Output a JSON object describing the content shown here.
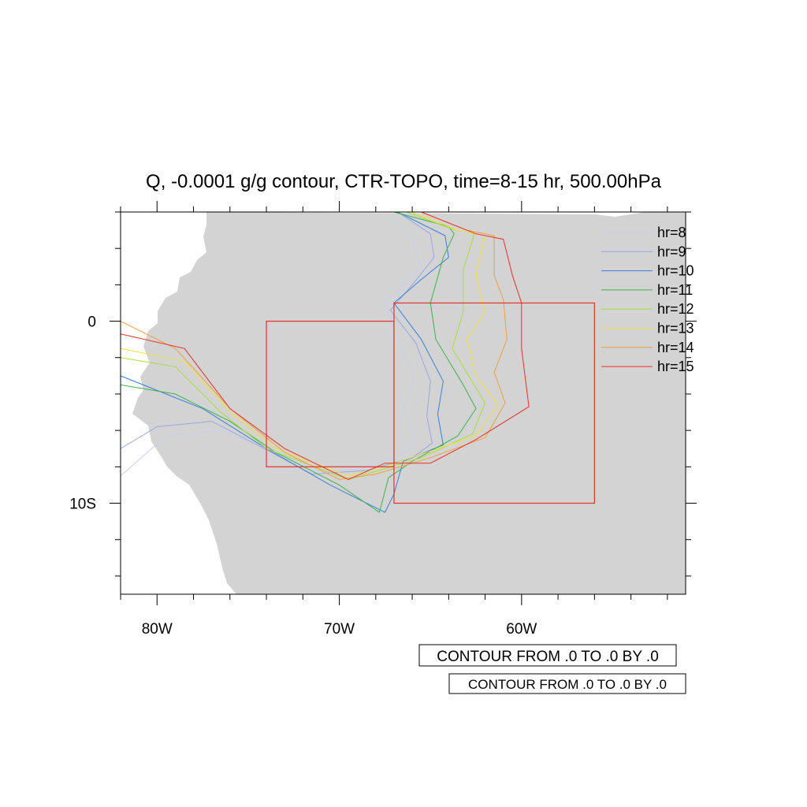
{
  "title": "Q, -0.0001 g/g contour, CTR-TOPO, time=8-15 hr, 500.00hPa",
  "map": {
    "lon_range": [
      -82,
      -51
    ],
    "lat_range": [
      -15,
      6
    ],
    "x_tick_labels": [
      {
        "lon": -80,
        "label": "80W"
      },
      {
        "lon": -70,
        "label": "70W"
      },
      {
        "lon": -60,
        "label": "60W"
      }
    ],
    "y_tick_labels": [
      {
        "lat": 0,
        "label": "0"
      },
      {
        "lat": -10,
        "label": "10S"
      }
    ],
    "land_color": "#d3d3d3",
    "ocean_color": "#ffffff"
  },
  "legend": {
    "placement": "top-right",
    "entries": [
      {
        "label": "hr=8",
        "color": "#c8cff0"
      },
      {
        "label": "hr=9",
        "color": "#97a8e6"
      },
      {
        "label": "hr=10",
        "color": "#3a7ee0"
      },
      {
        "label": "hr=11",
        "color": "#3cb44b"
      },
      {
        "label": "hr=12",
        "color": "#a8df3a"
      },
      {
        "label": "hr=13",
        "color": "#f0e23a"
      },
      {
        "label": "hr=14",
        "color": "#f0a13a"
      },
      {
        "label": "hr=15",
        "color": "#e8302a"
      }
    ]
  },
  "boxes": [
    {
      "name": "west-box",
      "lon": [
        -74,
        -67
      ],
      "lat": [
        -8,
        0
      ],
      "color": "#e8302a"
    },
    {
      "name": "east-box",
      "lon": [
        -67,
        -56
      ],
      "lat": [
        -10,
        1
      ],
      "color": "#e8302a"
    }
  ],
  "info_labels": [
    "CONTOUR FROM .0 TO .0 BY .0",
    "CONTOUR FROM .0 TO .0 BY .0"
  ],
  "chart_data": {
    "type": "contour-map",
    "title": "Q, -0.0001 g/g contour, CTR-TOPO, time=8-15 hr, 500.00hPa",
    "series": [
      {
        "name": "hr=8",
        "contour": [
          [
            -67.3,
            5.8
          ],
          [
            -66.0,
            4.5
          ],
          [
            -65.5,
            3.0
          ],
          [
            -66.5,
            2.0
          ],
          [
            -67.5,
            1.0
          ],
          [
            -66.8,
            -1.0
          ],
          [
            -65.9,
            -3.0
          ],
          [
            -66.5,
            -5.0
          ],
          [
            -65.8,
            -6.5
          ],
          [
            -66.5,
            -7.3
          ],
          [
            -68.8,
            -8.1
          ],
          [
            -71.0,
            -8.3
          ],
          [
            -74.0,
            -7.0
          ],
          [
            -76.5,
            -6.0
          ],
          [
            -79.5,
            -6.3
          ],
          [
            -82.0,
            -8.5
          ]
        ]
      },
      {
        "name": "hr=9",
        "contour": [
          [
            -66.8,
            6.0
          ],
          [
            -65.0,
            4.8
          ],
          [
            -64.8,
            3.5
          ],
          [
            -66.0,
            2.0
          ],
          [
            -67.2,
            0.6
          ],
          [
            -65.8,
            -1.2
          ],
          [
            -65.0,
            -3.3
          ],
          [
            -65.2,
            -5.2
          ],
          [
            -64.9,
            -6.7
          ],
          [
            -66.0,
            -7.5
          ],
          [
            -68.5,
            -8.2
          ],
          [
            -71.5,
            -8.4
          ],
          [
            -74.5,
            -6.8
          ],
          [
            -77.0,
            -5.5
          ],
          [
            -80.0,
            -5.8
          ],
          [
            -82.0,
            -7.0
          ]
        ]
      },
      {
        "name": "hr=10",
        "contour": [
          [
            -66.8,
            6.0
          ],
          [
            -64.2,
            4.7
          ],
          [
            -64.0,
            3.5
          ],
          [
            -65.5,
            2.3
          ],
          [
            -67.0,
            1.0
          ],
          [
            -65.5,
            -1.0
          ],
          [
            -64.3,
            -3.3
          ],
          [
            -64.6,
            -5.1
          ],
          [
            -64.3,
            -6.8
          ],
          [
            -66.5,
            -7.7
          ],
          [
            -67.0,
            -9.5
          ],
          [
            -67.5,
            -10.5
          ],
          [
            -70.5,
            -9.0
          ],
          [
            -74.0,
            -7.0
          ],
          [
            -77.5,
            -4.8
          ],
          [
            -82.0,
            -3.0
          ]
        ]
      },
      {
        "name": "hr=11",
        "contour": [
          [
            -67.0,
            6.0
          ],
          [
            -64.0,
            5.2
          ],
          [
            -63.7,
            4.8
          ],
          [
            -64.3,
            3.5
          ],
          [
            -65.0,
            1.0
          ],
          [
            -64.7,
            -1.0
          ],
          [
            -63.2,
            -3.5
          ],
          [
            -62.5,
            -4.8
          ],
          [
            -63.5,
            -6.3
          ],
          [
            -66.0,
            -7.7
          ],
          [
            -67.3,
            -8.6
          ],
          [
            -67.8,
            -10.5
          ],
          [
            -70.0,
            -9.0
          ],
          [
            -73.5,
            -7.2
          ],
          [
            -76.0,
            -5.5
          ],
          [
            -79.0,
            -4.0
          ],
          [
            -82.0,
            -3.5
          ]
        ]
      },
      {
        "name": "hr=12",
        "contour": [
          [
            -66.3,
            6.0
          ],
          [
            -63.9,
            5.1
          ],
          [
            -62.6,
            4.8
          ],
          [
            -63.2,
            2.8
          ],
          [
            -63.2,
            0.5
          ],
          [
            -63.8,
            -1.5
          ],
          [
            -62.9,
            -3.0
          ],
          [
            -62.0,
            -4.5
          ],
          [
            -62.7,
            -6.2
          ],
          [
            -65.5,
            -7.5
          ],
          [
            -67.5,
            -8.1
          ],
          [
            -69.5,
            -8.7
          ],
          [
            -74.0,
            -7.0
          ],
          [
            -76.5,
            -5.0
          ],
          [
            -79.0,
            -2.5
          ],
          [
            -82.0,
            -2.0
          ]
        ]
      },
      {
        "name": "hr=13",
        "contour": [
          [
            -66.0,
            6.0
          ],
          [
            -63.5,
            5.0
          ],
          [
            -62.0,
            4.7
          ],
          [
            -62.5,
            2.5
          ],
          [
            -62.0,
            0.5
          ],
          [
            -63.0,
            -1.0
          ],
          [
            -62.5,
            -3.0
          ],
          [
            -61.3,
            -4.6
          ],
          [
            -62.5,
            -6.3
          ],
          [
            -65.5,
            -7.3
          ],
          [
            -67.5,
            -8.0
          ],
          [
            -69.5,
            -8.5
          ],
          [
            -73.5,
            -7.0
          ],
          [
            -76.0,
            -5.0
          ],
          [
            -78.5,
            -2.2
          ],
          [
            -82.0,
            -1.5
          ]
        ]
      },
      {
        "name": "hr=14",
        "contour": [
          [
            -65.5,
            6.0
          ],
          [
            -63.0,
            5.0
          ],
          [
            -61.5,
            4.7
          ],
          [
            -61.5,
            2.5
          ],
          [
            -61.0,
            1.2
          ],
          [
            -60.8,
            -1.0
          ],
          [
            -61.5,
            -2.8
          ],
          [
            -60.9,
            -4.5
          ],
          [
            -62.0,
            -6.4
          ],
          [
            -65.0,
            -7.5
          ],
          [
            -68.0,
            -8.4
          ],
          [
            -70.0,
            -8.7
          ],
          [
            -73.0,
            -7.2
          ],
          [
            -76.0,
            -4.8
          ],
          [
            -79.0,
            -1.5
          ],
          [
            -82.0,
            0.0
          ]
        ]
      },
      {
        "name": "hr=15",
        "contour": [
          [
            -65.5,
            6.0
          ],
          [
            -62.5,
            4.8
          ],
          [
            -61.0,
            4.5
          ],
          [
            -60.5,
            2.5
          ],
          [
            -60.0,
            1.0
          ],
          [
            -60.0,
            -1.5
          ],
          [
            -59.6,
            -4.7
          ],
          [
            -62.5,
            -6.5
          ],
          [
            -65.0,
            -7.8
          ],
          [
            -67.5,
            -7.8
          ],
          [
            -69.5,
            -8.7
          ],
          [
            -73.0,
            -7.0
          ],
          [
            -76.0,
            -4.8
          ],
          [
            -78.5,
            -1.5
          ],
          [
            -82.0,
            -0.7
          ]
        ]
      }
    ]
  }
}
